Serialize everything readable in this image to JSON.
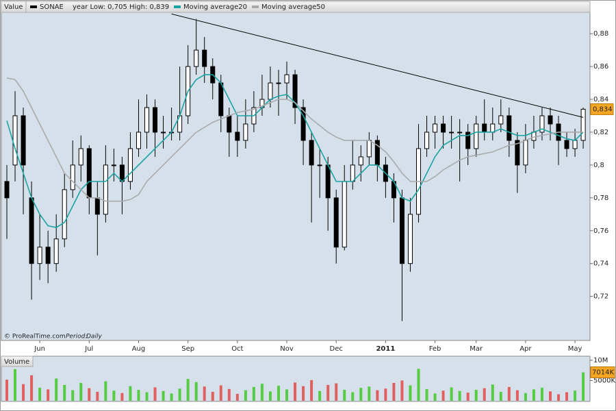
{
  "chart_data": [
    {
      "type": "candlestick",
      "axis_title": "Value",
      "info": "year Low: 0,705 High: 0,839",
      "source": "© ProRealTime.com",
      "period_label": "Period:",
      "period": "Daily",
      "categories": [
        null,
        null,
        null,
        null,
        "Jun",
        null,
        null,
        null,
        null,
        null,
        "Jul",
        null,
        null,
        null,
        null,
        null,
        "Aug",
        null,
        null,
        null,
        null,
        null,
        "Sep",
        null,
        null,
        null,
        null,
        null,
        "Oct",
        null,
        null,
        null,
        null,
        null,
        "Nov",
        null,
        null,
        null,
        null,
        null,
        "Dec",
        null,
        null,
        null,
        null,
        null,
        "2011",
        null,
        null,
        null,
        null,
        null,
        "Feb",
        null,
        null,
        null,
        null,
        "Mar",
        null,
        null,
        null,
        null,
        null,
        "Apr",
        null,
        null,
        null,
        null,
        null,
        "May",
        null
      ],
      "ylim": [
        0.699,
        0.893
      ],
      "yticks": [
        {
          "value": 0.72,
          "label": "0,72"
        },
        {
          "value": 0.74,
          "label": "0,74"
        },
        {
          "value": 0.76,
          "label": "0,76"
        },
        {
          "value": 0.78,
          "label": "0,78"
        },
        {
          "value": 0.8,
          "label": "0,8"
        },
        {
          "value": 0.82,
          "label": "0,82"
        },
        {
          "value": 0.84,
          "label": "0,84"
        },
        {
          "value": 0.86,
          "label": "0,86"
        },
        {
          "value": 0.88,
          "label": "0,88"
        }
      ],
      "series": [
        {
          "name": "SONAE",
          "color": "#000000",
          "last_label": "0,834",
          "ohlc": [
            [
              0.79,
              0.8,
              0.755,
              0.78
            ],
            [
              0.8,
              0.845,
              0.79,
              0.83
            ],
            [
              0.83,
              0.835,
              0.77,
              0.8
            ],
            [
              0.78,
              0.79,
              0.718,
              0.74
            ],
            [
              0.74,
              0.77,
              0.73,
              0.75
            ],
            [
              0.75,
              0.76,
              0.728,
              0.74
            ],
            [
              0.74,
              0.77,
              0.735,
              0.755
            ],
            [
              0.755,
              0.795,
              0.75,
              0.785
            ],
            [
              0.785,
              0.815,
              0.78,
              0.8
            ],
            [
              0.8,
              0.818,
              0.79,
              0.81
            ],
            [
              0.81,
              0.812,
              0.77,
              0.78
            ],
            [
              0.78,
              0.79,
              0.745,
              0.77
            ],
            [
              0.77,
              0.812,
              0.765,
              0.8
            ],
            [
              0.8,
              0.81,
              0.79,
              0.8
            ],
            [
              0.8,
              0.805,
              0.77,
              0.79
            ],
            [
              0.79,
              0.82,
              0.785,
              0.81
            ],
            [
              0.81,
              0.84,
              0.805,
              0.82
            ],
            [
              0.82,
              0.843,
              0.81,
              0.835
            ],
            [
              0.835,
              0.84,
              0.805,
              0.82
            ],
            [
              0.82,
              0.83,
              0.81,
              0.82
            ],
            [
              0.82,
              0.835,
              0.815,
              0.82
            ],
            [
              0.82,
              0.86,
              0.815,
              0.83
            ],
            [
              0.83,
              0.873,
              0.825,
              0.86
            ],
            [
              0.86,
              0.889,
              0.855,
              0.87
            ],
            [
              0.87,
              0.878,
              0.85,
              0.86
            ],
            [
              0.86,
              0.865,
              0.84,
              0.85
            ],
            [
              0.85,
              0.855,
              0.82,
              0.83
            ],
            [
              0.83,
              0.835,
              0.805,
              0.82
            ],
            [
              0.82,
              0.83,
              0.805,
              0.815
            ],
            [
              0.815,
              0.84,
              0.81,
              0.825
            ],
            [
              0.825,
              0.845,
              0.82,
              0.835
            ],
            [
              0.835,
              0.855,
              0.83,
              0.84
            ],
            [
              0.84,
              0.86,
              0.835,
              0.85
            ],
            [
              0.85,
              0.858,
              0.83,
              0.85
            ],
            [
              0.85,
              0.863,
              0.84,
              0.855
            ],
            [
              0.855,
              0.858,
              0.825,
              0.835
            ],
            [
              0.835,
              0.84,
              0.8,
              0.815
            ],
            [
              0.815,
              0.82,
              0.765,
              0.8
            ],
            [
              0.8,
              0.81,
              0.78,
              0.8
            ],
            [
              0.8,
              0.805,
              0.76,
              0.78
            ],
            [
              0.78,
              0.785,
              0.74,
              0.75
            ],
            [
              0.75,
              0.8,
              0.748,
              0.79
            ],
            [
              0.79,
              0.815,
              0.785,
              0.8
            ],
            [
              0.8,
              0.812,
              0.79,
              0.805
            ],
            [
              0.805,
              0.82,
              0.8,
              0.815
            ],
            [
              0.815,
              0.818,
              0.79,
              0.8
            ],
            [
              0.8,
              0.805,
              0.78,
              0.79
            ],
            [
              0.79,
              0.795,
              0.765,
              0.78
            ],
            [
              0.78,
              0.785,
              0.705,
              0.74
            ],
            [
              0.74,
              0.78,
              0.735,
              0.77
            ],
            [
              0.77,
              0.825,
              0.765,
              0.81
            ],
            [
              0.81,
              0.83,
              0.805,
              0.82
            ],
            [
              0.82,
              0.83,
              0.81,
              0.825
            ],
            [
              0.825,
              0.83,
              0.81,
              0.82
            ],
            [
              0.82,
              0.83,
              0.81,
              0.82
            ],
            [
              0.82,
              0.828,
              0.79,
              0.82
            ],
            [
              0.82,
              0.825,
              0.8,
              0.81
            ],
            [
              0.81,
              0.83,
              0.805,
              0.825
            ],
            [
              0.825,
              0.84,
              0.815,
              0.82
            ],
            [
              0.82,
              0.835,
              0.815,
              0.825
            ],
            [
              0.825,
              0.84,
              0.82,
              0.83
            ],
            [
              0.83,
              0.835,
              0.805,
              0.815
            ],
            [
              0.815,
              0.82,
              0.783,
              0.8
            ],
            [
              0.8,
              0.825,
              0.795,
              0.815
            ],
            [
              0.815,
              0.83,
              0.81,
              0.82
            ],
            [
              0.82,
              0.835,
              0.815,
              0.83
            ],
            [
              0.83,
              0.835,
              0.815,
              0.825
            ],
            [
              0.825,
              0.83,
              0.8,
              0.815
            ],
            [
              0.815,
              0.82,
              0.805,
              0.81
            ],
            [
              0.81,
              0.822,
              0.805,
              0.815
            ],
            [
              0.815,
              0.835,
              0.81,
              0.834
            ]
          ]
        },
        {
          "name": "Moving average20",
          "color": "#1aa3a3",
          "values": [
            0.827,
            0.81,
            0.795,
            0.78,
            0.77,
            0.763,
            0.762,
            0.765,
            0.775,
            0.785,
            0.79,
            0.79,
            0.79,
            0.795,
            0.79,
            0.795,
            0.8,
            0.805,
            0.81,
            0.815,
            0.82,
            0.83,
            0.845,
            0.852,
            0.855,
            0.855,
            0.85,
            0.84,
            0.83,
            0.83,
            0.83,
            0.835,
            0.84,
            0.842,
            0.843,
            0.838,
            0.83,
            0.82,
            0.81,
            0.8,
            0.79,
            0.79,
            0.79,
            0.795,
            0.8,
            0.8,
            0.795,
            0.79,
            0.78,
            0.778,
            0.785,
            0.795,
            0.805,
            0.812,
            0.815,
            0.818,
            0.818,
            0.82,
            0.82,
            0.82,
            0.822,
            0.82,
            0.818,
            0.818,
            0.82,
            0.822,
            0.82,
            0.818,
            0.816,
            0.815,
            0.82
          ]
        },
        {
          "name": "Moving average50",
          "color": "#aaaaaa",
          "values": [
            0.853,
            0.852,
            0.845,
            0.835,
            0.825,
            0.815,
            0.805,
            0.795,
            0.79,
            0.785,
            0.78,
            0.78,
            0.778,
            0.778,
            0.778,
            0.779,
            0.782,
            0.79,
            0.795,
            0.8,
            0.805,
            0.81,
            0.815,
            0.82,
            0.823,
            0.826,
            0.828,
            0.83,
            0.832,
            0.833,
            0.834,
            0.836,
            0.838,
            0.84,
            0.84,
            0.838,
            0.833,
            0.828,
            0.824,
            0.82,
            0.817,
            0.815,
            0.815,
            0.815,
            0.815,
            0.812,
            0.808,
            0.802,
            0.795,
            0.79,
            0.79,
            0.79,
            0.793,
            0.797,
            0.8,
            0.803,
            0.805,
            0.806,
            0.807,
            0.808,
            0.81,
            0.812,
            0.813,
            0.815,
            0.817,
            0.818,
            0.819,
            0.82,
            0.82,
            0.82,
            0.82
          ]
        }
      ],
      "trend_line": {
        "x": [
          20,
          70
        ],
        "y": [
          0.892,
          0.829
        ]
      }
    },
    {
      "type": "bar",
      "title": "Volume",
      "ylim": [
        0,
        11000000
      ],
      "yticks": [
        {
          "value": 5000000,
          "label": "5000K"
        },
        {
          "value": 10000000,
          "label": "10M"
        }
      ],
      "up_color": "#55cc44",
      "down_color": "#e06060",
      "last_label": "7014K",
      "values": [
        5200000,
        7800000,
        4100000,
        6300000,
        3200000,
        2800000,
        5500000,
        3900000,
        2600000,
        4400000,
        3100000,
        2200000,
        4800000,
        2500000,
        1900000,
        3600000,
        2700000,
        2100000,
        3300000,
        2400000,
        1800000,
        3000000,
        5400000,
        4600000,
        3500000,
        2200000,
        3800000,
        2900000,
        1700000,
        2600000,
        3400000,
        4200000,
        2300000,
        3700000,
        2800000,
        4500000,
        3600000,
        5100000,
        2400000,
        3900000,
        4300000,
        2700000,
        2100000,
        3200000,
        3500000,
        2600000,
        3000000,
        4400000,
        5000000,
        3800000,
        7900000,
        2900000,
        1800000,
        2500000,
        3300000,
        2400000,
        2000000,
        2700000,
        3100000,
        4000000,
        2200000,
        3400000,
        2600000,
        1900000,
        2800000,
        3200000,
        2300000,
        1600000,
        2100000,
        2500000,
        7014000
      ]
    }
  ]
}
